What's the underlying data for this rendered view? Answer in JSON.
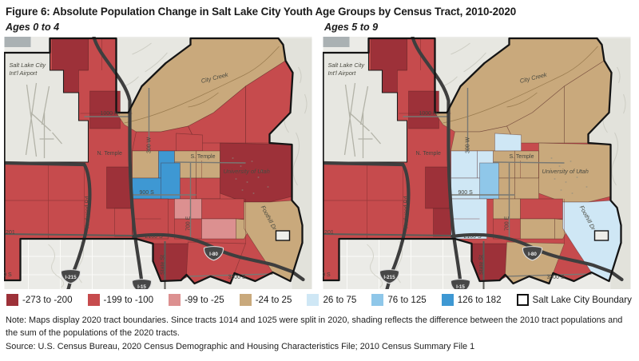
{
  "figure": {
    "title": "Figure 6: Absolute Population Change in Salt Lake City Youth Age Groups by Census Tract, 2010-2020"
  },
  "maps": [
    {
      "subtitle": "Ages 0 to 4",
      "tracts": {
        "nw4": "d4",
        "wn2": "d4",
        "cc": "d1",
        "ne": "d3",
        "ave": "d3",
        "avw": "d3",
        "cap": "d3",
        "uu": "d4",
        "r1a": "d1",
        "r1b": "u3",
        "r1c": "d1",
        "r1d": "d1",
        "r2a": "u3",
        "r2c": "d3",
        "r2d": "d3",
        "m2": "u3",
        "r34ab": "d3",
        "r3c": "d2",
        "r3d": "d3",
        "r4c": "d3",
        "r4d": "d2",
        "r4e": "d1",
        "fh": "d1",
        "ss1": "d4",
        "sh1": "d3",
        "wm2": "d4",
        "ws2": "d3"
      }
    },
    {
      "subtitle": "Ages 5 to 9",
      "tracts": {
        "nw4": "d4",
        "wn2": "d4",
        "cc": "d1",
        "ne": "d1",
        "ave": "d1",
        "avw": "d1",
        "cap": "u1",
        "uu": "d1",
        "r1a": "u1",
        "r1b": "u1",
        "r1c": "d1",
        "r1d": "d1",
        "r2a": "u1",
        "r2c": "d1",
        "r2d": "d1",
        "m2": "u2",
        "r34ab": "u1",
        "r3c": "d1",
        "r3d": "d3",
        "r4c": "d3",
        "r4d": "d1",
        "r4e": "d1",
        "fh": "u1",
        "ss1": "d4",
        "sh1": "d1",
        "wm2": "d4",
        "ws2": "d4"
      }
    }
  ],
  "legend": {
    "items": [
      {
        "id": "d4",
        "label": "-273 to -200",
        "color": "#9d3139"
      },
      {
        "id": "d3",
        "label": "-199 to -100",
        "color": "#c64b4d"
      },
      {
        "id": "d2",
        "label": "-99 to -25",
        "color": "#dc9090"
      },
      {
        "id": "d1",
        "label": "-24 to 25",
        "color": "#c9a97c"
      },
      {
        "id": "u1",
        "label": "26 to 75",
        "color": "#cfe7f5"
      },
      {
        "id": "u2",
        "label": "76 to 125",
        "color": "#8fc7e9"
      },
      {
        "id": "u3",
        "label": "126 to 182",
        "color": "#3e98d3"
      }
    ],
    "boundary_label": "Salt Lake City Boundary"
  },
  "map_labels": {
    "airport_line1": "Salt Lake City",
    "airport_line2": "Int'l Airport",
    "city_creek": "City Creek",
    "n1000": "1000 N.",
    "n_temple": "N. Temple",
    "w300": "300 W",
    "s_temple": "S. Temple",
    "university": "University of Utah",
    "s900": "900 S",
    "redwood_rd": "Redwood Rd",
    "e700": "700 E",
    "s2100": "2100 S",
    "hwy201": "Hwy 201",
    "foothill_dr": "Foothill Dr",
    "state_st": "State St",
    "s3300": "3300 S",
    "s3300_west": "3300 S",
    "shield_i215": "I-215",
    "shield_i15": "I-15",
    "shield_i80": "I-80"
  },
  "notes": {
    "note": "Note: Maps display 2020 tract boundaries. Since tracts 1014 and 1025 were split in 2020, shading reflects the difference between the 2010 tract populations and the sum of the populations of the 2020 tracts.",
    "source": "Source: U.S. Census Bureau, 2020 Census Demographic and Housing Characteristics File; 2010 Census Summary File 1"
  }
}
